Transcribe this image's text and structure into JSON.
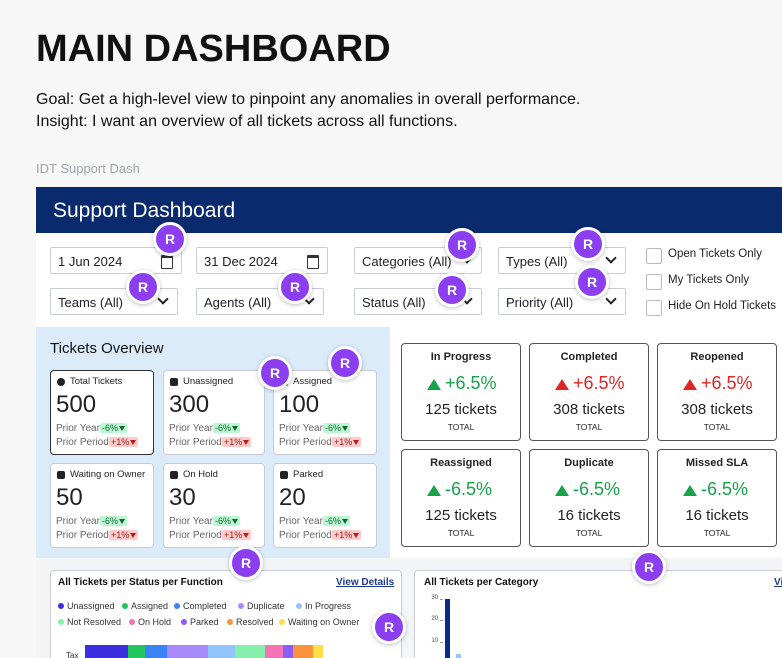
{
  "title": "MAIN DASHBOARD",
  "goal": "Goal: Get a high-level view to pinpoint any anomalies in overall performance.",
  "insight": "Insight: I want an overview of all tickets across all functions.",
  "frame_label": "IDT Support Dash",
  "dashboard": {
    "header": "Support Dashboard",
    "filters": [
      "1 Jun 2024",
      "31 Dec 2024",
      "Categories (All)",
      "Types (All)",
      "Teams (All)",
      "Agents (All)",
      "Status (All)",
      "Priority (All)"
    ],
    "checkboxes": [
      "Open Tickets Only",
      "My Tickets Only",
      "Hide On Hold Tickets"
    ],
    "overview": {
      "title": "Tickets Overview",
      "prior_year_label": "Prior Year:",
      "prior_period_label": "Prior Period:",
      "cards": [
        {
          "label": "Total Tickets",
          "value": 500,
          "prior_year": "-6%",
          "prior_period": "+1%"
        },
        {
          "label": "Unassigned",
          "value": 300,
          "prior_year": "-6%",
          "prior_period": "+1%"
        },
        {
          "label": "Assigned",
          "value": 100,
          "prior_year": "-6%",
          "prior_period": "+1%"
        },
        {
          "label": "Waiting on Owner",
          "value": 50,
          "prior_year": "-6%",
          "prior_period": "+1%"
        },
        {
          "label": "On Hold",
          "value": 30,
          "prior_year": "-6%",
          "prior_period": "+1%"
        },
        {
          "label": "Parked",
          "value": 20,
          "prior_year": "-6%",
          "prior_period": "+1%"
        }
      ]
    },
    "kpis": [
      {
        "label": "In Progress",
        "change": "+6.5%",
        "trend": "up",
        "arrow_color": "#16a34a",
        "tickets": "125 tickets",
        "total": "TOTAL"
      },
      {
        "label": "Completed",
        "change": "+6.5%",
        "trend": "up",
        "arrow_color": "#dc2626",
        "tickets": "308 tickets",
        "total": "TOTAL"
      },
      {
        "label": "Reopened",
        "change": "+6.5%",
        "trend": "up",
        "arrow_color": "#dc2626",
        "tickets": "308 tickets",
        "total": "TOTAL"
      },
      {
        "label": "Reassigned",
        "change": "-6.5%",
        "trend": "up",
        "arrow_color": "#16a34a",
        "tickets": "125 tickets",
        "total": "TOTAL"
      },
      {
        "label": "Duplicate",
        "change": "-6.5%",
        "trend": "up",
        "arrow_color": "#16a34a",
        "tickets": "16 tickets",
        "total": "TOTAL"
      },
      {
        "label": "Missed SLA",
        "change": "-6.5%",
        "trend": "up",
        "arrow_color": "#16a34a",
        "tickets": "16 tickets",
        "total": "TOTAL"
      }
    ],
    "status_chart": {
      "title": "All Tickets per Status per Function",
      "link": "View Details",
      "legend": [
        {
          "name": "Unassigned",
          "color": "#3b2fe0"
        },
        {
          "name": "Assigned",
          "color": "#22c55e"
        },
        {
          "name": "Completed",
          "color": "#3b82f6"
        },
        {
          "name": "Duplicate",
          "color": "#a78bfa"
        },
        {
          "name": "In Progress",
          "color": "#93c5fd"
        },
        {
          "name": "Not Resolved",
          "color": "#86efac"
        },
        {
          "name": "On Hold",
          "color": "#f472b6"
        },
        {
          "name": "Parked",
          "color": "#8b5cf6"
        },
        {
          "name": "Resolved",
          "color": "#fb923c"
        },
        {
          "name": "Waiting on Owner",
          "color": "#fde047"
        }
      ],
      "rows": [
        {
          "label": "Tax",
          "values": [
            43,
            17,
            22,
            41,
            27,
            30,
            18,
            10,
            20,
            10
          ]
        }
      ]
    },
    "category_chart": {
      "title": "All Tickets per Category",
      "link": "Vi",
      "ylim": [
        0,
        30
      ],
      "yticks": [
        10,
        20,
        30
      ],
      "values": [
        30,
        4
      ],
      "colors": [
        "#0a2a8a",
        "#93c5fd"
      ]
    }
  },
  "avatars": [
    "R",
    "R",
    "R",
    "R",
    "R",
    "R",
    "R",
    "R",
    "R",
    "R",
    "R",
    "R"
  ]
}
